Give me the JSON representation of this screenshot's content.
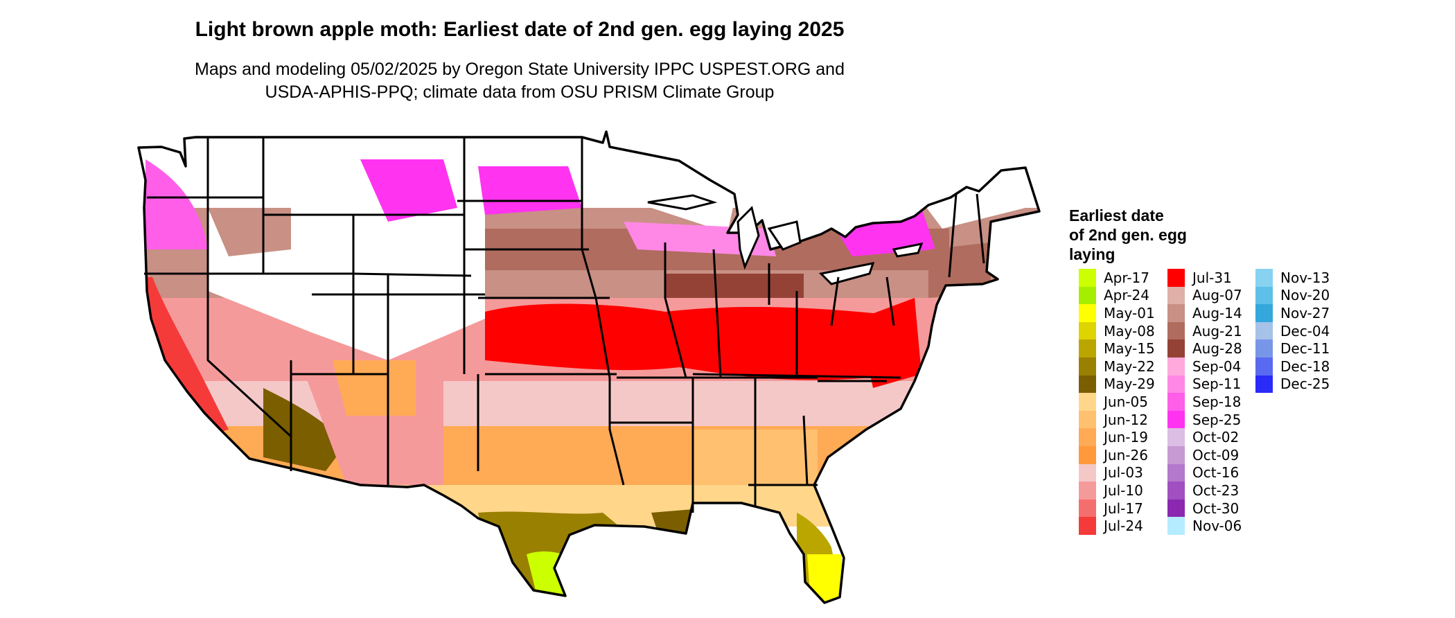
{
  "title": "Light brown apple moth: Earliest date of 2nd gen. egg laying 2025",
  "subtitle": [
    "Maps and modeling 05/02/2025 by Oregon State University IPPC USPEST.ORG and",
    "USDA-APHIS-PPQ; climate data from OSU PRISM Climate Group"
  ],
  "legend": {
    "title": [
      "Earliest date",
      "of 2nd gen. egg",
      "laying"
    ],
    "items": [
      {
        "label": "Apr-17",
        "color": "#ccff00"
      },
      {
        "label": "Apr-24",
        "color": "#a6ee00"
      },
      {
        "label": "May-01",
        "color": "#ffff00"
      },
      {
        "label": "May-08",
        "color": "#ddd400"
      },
      {
        "label": "May-15",
        "color": "#bba600"
      },
      {
        "label": "May-22",
        "color": "#998000"
      },
      {
        "label": "May-29",
        "color": "#7a5e00"
      },
      {
        "label": "Jun-05",
        "color": "#ffd68a"
      },
      {
        "label": "Jun-12",
        "color": "#ffc070"
      },
      {
        "label": "Jun-19",
        "color": "#ffaa55"
      },
      {
        "label": "Jun-26",
        "color": "#ff993b"
      },
      {
        "label": "Jul-03",
        "color": "#f5c8c8"
      },
      {
        "label": "Jul-10",
        "color": "#f59a9a"
      },
      {
        "label": "Jul-17",
        "color": "#f56e6e"
      },
      {
        "label": "Jul-24",
        "color": "#f53a3a"
      },
      {
        "label": "Jul-31",
        "color": "#ff0000"
      },
      {
        "label": "Aug-07",
        "color": "#deb0a8"
      },
      {
        "label": "Aug-14",
        "color": "#c99085"
      },
      {
        "label": "Aug-21",
        "color": "#b06c5e"
      },
      {
        "label": "Aug-28",
        "color": "#944236"
      },
      {
        "label": "Sep-04",
        "color": "#ffaadd"
      },
      {
        "label": "Sep-11",
        "color": "#ff88e6"
      },
      {
        "label": "Sep-18",
        "color": "#ff5ee8"
      },
      {
        "label": "Sep-25",
        "color": "#ff33f0"
      },
      {
        "label": "Oct-02",
        "color": "#dcbde4"
      },
      {
        "label": "Oct-09",
        "color": "#c79ad4"
      },
      {
        "label": "Oct-16",
        "color": "#b478cc"
      },
      {
        "label": "Oct-23",
        "color": "#a050c0"
      },
      {
        "label": "Oct-30",
        "color": "#8a28b0"
      },
      {
        "label": "Nov-06",
        "color": "#b6ecff"
      },
      {
        "label": "Nov-13",
        "color": "#86d2f0"
      },
      {
        "label": "Nov-20",
        "color": "#5ec0e8"
      },
      {
        "label": "Nov-27",
        "color": "#34a8dc"
      },
      {
        "label": "Dec-04",
        "color": "#a6c2e8"
      },
      {
        "label": "Dec-11",
        "color": "#7896e8"
      },
      {
        "label": "Dec-18",
        "color": "#5a6af0"
      },
      {
        "label": "Dec-25",
        "color": "#2a2afa"
      }
    ]
  }
}
